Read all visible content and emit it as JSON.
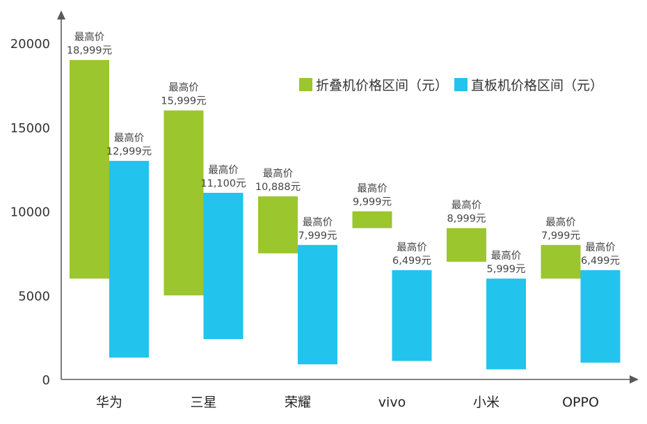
{
  "chart_data": {
    "type": "bar",
    "subtype": "floating-range",
    "categories": [
      "华为",
      "三星",
      "荣耀",
      "vivo",
      "小米",
      "OPPO"
    ],
    "ylim": [
      0,
      22500
    ],
    "yticks": [
      0,
      5000,
      10000,
      15000,
      20000
    ],
    "grid": false,
    "legend_position": "top-right",
    "series": [
      {
        "name": "折叠机价格区间（元）",
        "color": "#9bc62d",
        "ranges": [
          [
            5999,
            18999
          ],
          [
            4999,
            15999
          ],
          [
            7499,
            10888
          ],
          [
            8999,
            9999
          ],
          [
            6999,
            8999
          ],
          [
            5999,
            7999
          ]
        ],
        "label_prefix": "最高价",
        "labels": [
          "18,999元",
          "15,999元",
          "10,888元",
          "9,999元",
          "8,999元",
          "7,999元"
        ]
      },
      {
        "name": "直板机价格区间（元）",
        "color": "#22c3ed",
        "ranges": [
          [
            1299,
            12999
          ],
          [
            2399,
            11100
          ],
          [
            899,
            7999
          ],
          [
            1099,
            6499
          ],
          [
            599,
            5999
          ],
          [
            999,
            6499
          ]
        ],
        "label_prefix": "最高价",
        "labels": [
          "12,999元",
          "11,100元",
          "7,999元",
          "6,499元",
          "5,999元",
          "6,499元"
        ]
      }
    ]
  }
}
